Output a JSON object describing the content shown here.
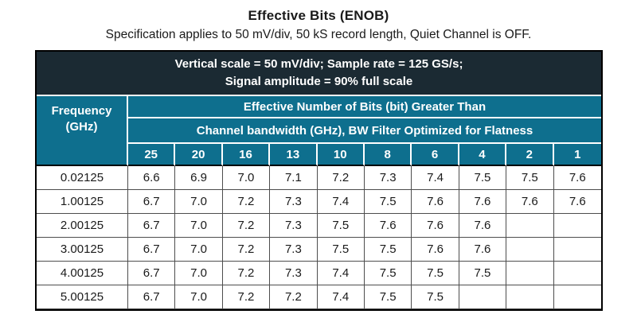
{
  "page": {
    "title": "Effective Bits (ENOB)",
    "subtitle": "Specification applies to 50 mV/div, 50 kS record length, Quiet Channel is OFF."
  },
  "table": {
    "condition_line1": "Vertical scale = 50 mV/div; Sample rate = 125 GS/s;",
    "condition_line2": "Signal amplitude = 90% full scale",
    "frequency_header": "Frequency (GHz)",
    "spanner1": "Effective Number of Bits (bit) Greater Than",
    "spanner2": "Channel bandwidth (GHz), BW Filter Optimized for Flatness",
    "bandwidths": [
      "25",
      "20",
      "16",
      "13",
      "10",
      "8",
      "6",
      "4",
      "2",
      "1"
    ],
    "rows": [
      {
        "frequency": "0.02125",
        "values": [
          "6.6",
          "6.9",
          "7.0",
          "7.1",
          "7.2",
          "7.3",
          "7.4",
          "7.5",
          "7.5",
          "7.6"
        ]
      },
      {
        "frequency": "1.00125",
        "values": [
          "6.7",
          "7.0",
          "7.2",
          "7.3",
          "7.4",
          "7.5",
          "7.6",
          "7.6",
          "7.6",
          "7.6"
        ]
      },
      {
        "frequency": "2.00125",
        "values": [
          "6.7",
          "7.0",
          "7.2",
          "7.3",
          "7.5",
          "7.6",
          "7.6",
          "7.6",
          "",
          ""
        ]
      },
      {
        "frequency": "3.00125",
        "values": [
          "6.7",
          "7.0",
          "7.2",
          "7.3",
          "7.5",
          "7.5",
          "7.6",
          "7.6",
          "",
          ""
        ]
      },
      {
        "frequency": "4.00125",
        "values": [
          "6.7",
          "7.0",
          "7.2",
          "7.3",
          "7.4",
          "7.5",
          "7.5",
          "7.5",
          "",
          ""
        ]
      },
      {
        "frequency": "5.00125",
        "values": [
          "6.7",
          "7.0",
          "7.2",
          "7.2",
          "7.4",
          "7.5",
          "7.5",
          "",
          "",
          ""
        ]
      }
    ]
  },
  "colors": {
    "banner_dark": "#1b2a33",
    "header_teal": "#0e6f8e",
    "grid_gray": "#4d4d4d",
    "text_dark": "#1a1a1a",
    "header_text": "#ffffff"
  }
}
